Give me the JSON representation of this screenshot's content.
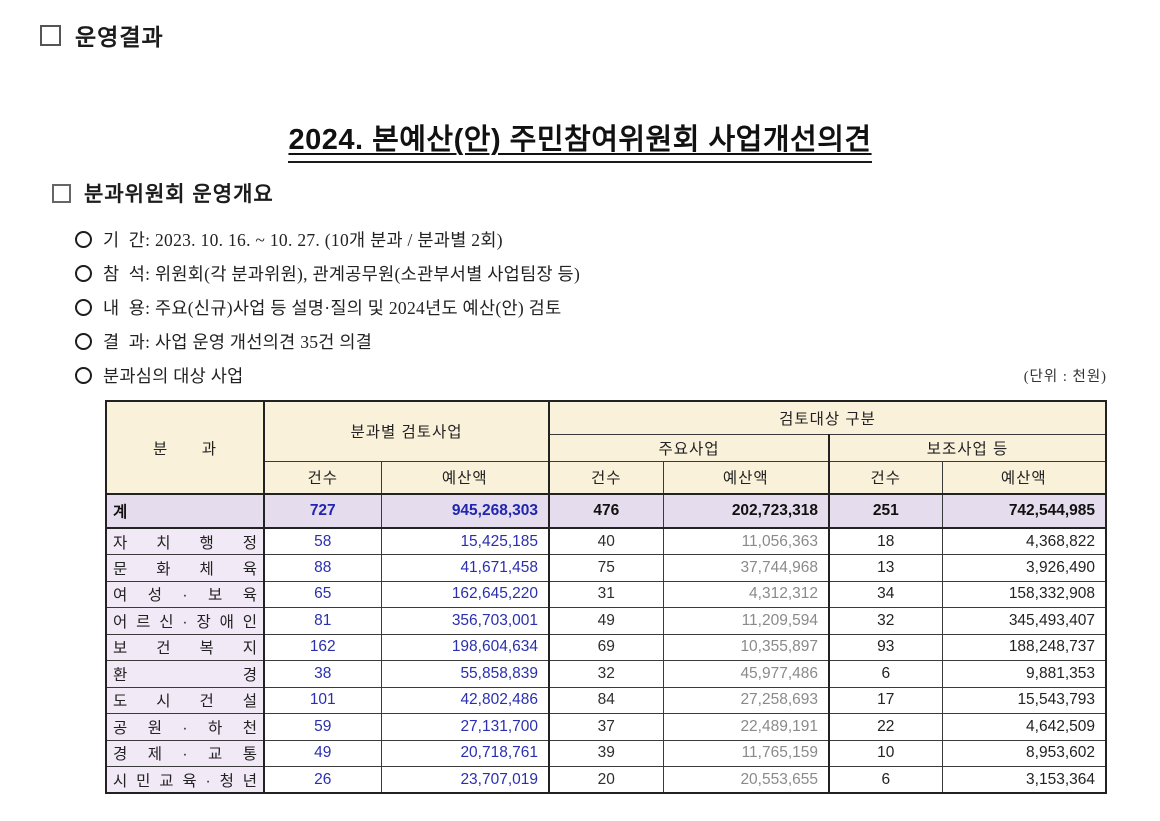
{
  "document": {
    "top_heading": "운영결과",
    "title": "2024. 본예산(안) 주민참여위원회 사업개선의견",
    "section_heading": "분과위원회 운영개요",
    "bullets": [
      "기  간: 2023. 10. 16. ~ 10. 27. (10개 분과 / 분과별 2회)",
      "참  석: 위원회(각 분과위원), 관계공무원(소관부서별 사업팀장 등)",
      "내  용: 주요(신규)사업 등 설명·질의 및 2024년도 예산(안) 검토",
      "결  과: 사업 운영 개선의견 35건 의결",
      "분과심의 대상 사업"
    ],
    "unit_note": "(단위 : 천원)"
  },
  "table": {
    "header": {
      "category": "분 과",
      "group_review": "분과별 검토사업",
      "group_target": "검토대상 구분",
      "sub_main": "주요사업",
      "sub_support": "보조사업 등",
      "count": "건수",
      "budget": "예산액"
    },
    "total_row": {
      "label": "계",
      "values": [
        "727",
        "945,268,303",
        "476",
        "202,723,318",
        "251",
        "742,544,985"
      ]
    },
    "rows": [
      {
        "label": "자 치 행 정",
        "values": [
          "58",
          "15,425,185",
          "40",
          "11,056,363",
          "18",
          "4,368,822"
        ]
      },
      {
        "label": "문 화 체 육",
        "values": [
          "88",
          "41,671,458",
          "75",
          "37,744,968",
          "13",
          "3,926,490"
        ]
      },
      {
        "label": "여 성 · 보 육",
        "values": [
          "65",
          "162,645,220",
          "31",
          "4,312,312",
          "34",
          "158,332,908"
        ]
      },
      {
        "label": "어 르 신 · 장 애 인",
        "values": [
          "81",
          "356,703,001",
          "49",
          "11,209,594",
          "32",
          "345,493,407"
        ]
      },
      {
        "label": "보 건 복 지",
        "values": [
          "162",
          "198,604,634",
          "69",
          "10,355,897",
          "93",
          "188,248,737"
        ]
      },
      {
        "label": "환 경",
        "values": [
          "38",
          "55,858,839",
          "32",
          "45,977,486",
          "6",
          "9,881,353"
        ]
      },
      {
        "label": "도 시 건 설",
        "values": [
          "101",
          "42,802,486",
          "84",
          "27,258,693",
          "17",
          "15,543,793"
        ]
      },
      {
        "label": "공 원 · 하 천",
        "values": [
          "59",
          "27,131,700",
          "37",
          "22,489,191",
          "22",
          "4,642,509"
        ]
      },
      {
        "label": "경 제 · 교 통",
        "values": [
          "49",
          "20,718,761",
          "39",
          "11,765,159",
          "10",
          "8,953,602"
        ]
      },
      {
        "label": "시 민 교 육 · 청 년",
        "values": [
          "26",
          "23,707,019",
          "20",
          "20,553,655",
          "6",
          "3,153,364"
        ]
      }
    ],
    "colors": {
      "header_bg": "#faf1da",
      "total_row_bg": "#e5ddee",
      "category_bg": "#f1e9f6",
      "accent_blue": "#2a2fb0",
      "muted_gray": "#8a8a8a"
    }
  }
}
